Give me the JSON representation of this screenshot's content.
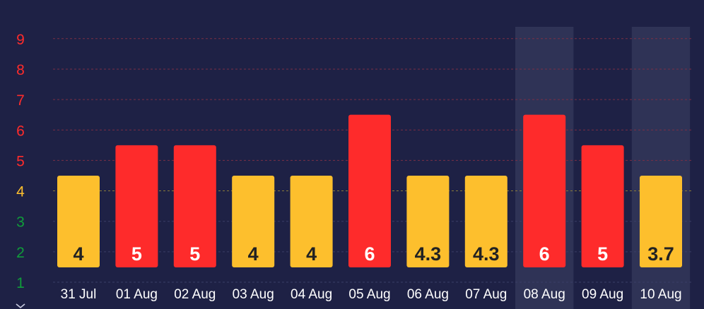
{
  "chart_data": {
    "type": "bar",
    "categories": [
      "31 Jul",
      "01 Aug",
      "02 Aug",
      "03 Aug",
      "04 Aug",
      "05 Aug",
      "06 Aug",
      "07 Aug",
      "08 Aug",
      "09 Aug",
      "10 Aug"
    ],
    "values": [
      4,
      5,
      5,
      4,
      4,
      6,
      4.3,
      4.3,
      6,
      5,
      3.7
    ],
    "value_labels": [
      "4",
      "5",
      "5",
      "4",
      "4",
      "6",
      "4.3",
      "4.3",
      "6",
      "5",
      "3.7"
    ],
    "bar_levels": [
      4,
      5,
      5,
      4,
      4,
      6,
      4,
      4,
      6,
      5,
      4
    ],
    "highlighted_categories": [
      "08 Aug",
      "10 Aug"
    ],
    "y_ticks": [
      1,
      2,
      3,
      4,
      5,
      6,
      7,
      8,
      9
    ],
    "ylim": [
      1,
      9
    ],
    "title": "",
    "xlabel": "",
    "ylabel": "",
    "grid": true,
    "legend": "none",
    "colors": {
      "background": "#1e2145",
      "highlight_band": "#2f3356",
      "bar_yellow": "#fdbf2d",
      "bar_red": "#fe2b2b",
      "label_dark": "#222222",
      "label_light": "#ffffff",
      "tick_green": "#0f9d3a",
      "tick_yellow": "#fdbf2d",
      "tick_red": "#fe2b2b",
      "grid_red": "#7a2f45",
      "grid_yellow": "#8a7a3a",
      "grid_neutral": "#3a3e66"
    }
  }
}
